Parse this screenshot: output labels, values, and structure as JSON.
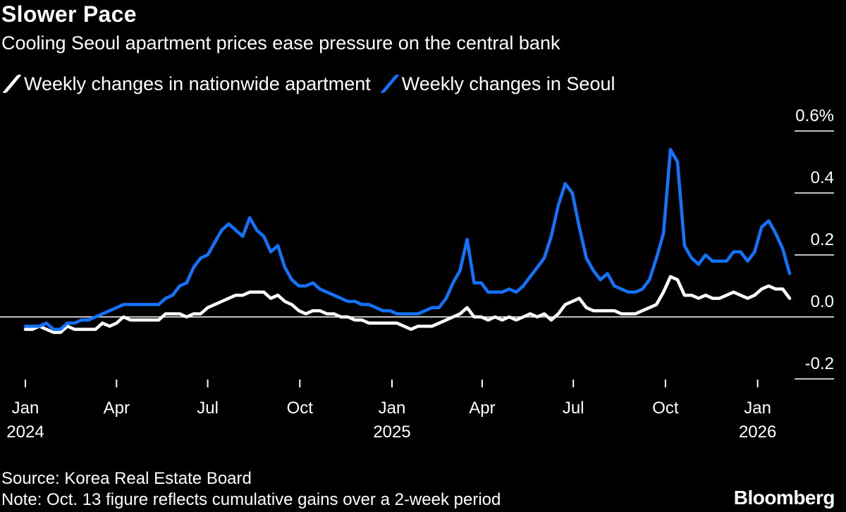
{
  "title": "Slower Pace",
  "subtitle": "Cooling Seoul apartment prices ease pressure on the central bank",
  "source": "Source: Korea Real Estate Board",
  "note": "Note: Oct. 13 figure reflects cumulative gains over a 2-week period",
  "brand": "Bloomberg",
  "chart_data": {
    "type": "line",
    "ylim": [
      -0.2,
      0.6
    ],
    "y_ticks": [
      {
        "value": 0.6,
        "label": "0.6%"
      },
      {
        "value": 0.4,
        "label": "0.4"
      },
      {
        "value": 0.2,
        "label": "0.2"
      },
      {
        "value": 0.0,
        "label": "0.0"
      },
      {
        "value": -0.2,
        "label": "-0.2"
      }
    ],
    "x_ticks": [
      {
        "date": "2024-01-01",
        "label": "Jan",
        "year": "2024"
      },
      {
        "date": "2024-04-01",
        "label": "Apr",
        "year": ""
      },
      {
        "date": "2024-07-01",
        "label": "Jul",
        "year": ""
      },
      {
        "date": "2024-10-01",
        "label": "Oct",
        "year": ""
      },
      {
        "date": "2025-01-01",
        "label": "Jan",
        "year": "2025"
      },
      {
        "date": "2025-04-01",
        "label": "Apr",
        "year": ""
      },
      {
        "date": "2025-07-01",
        "label": "Jul",
        "year": ""
      },
      {
        "date": "2025-10-01",
        "label": "Oct",
        "year": ""
      },
      {
        "date": "2026-01-01",
        "label": "Jan",
        "year": "2026"
      }
    ],
    "x_start": "2024-01-01",
    "x_end": "2026-02-16",
    "series": [
      {
        "name": "Weekly changes in nationwide apartment",
        "color": "#ffffff",
        "points": [
          [
            "2024-01-01",
            -0.04
          ],
          [
            "2024-01-08",
            -0.04
          ],
          [
            "2024-01-15",
            -0.03
          ],
          [
            "2024-01-22",
            -0.04
          ],
          [
            "2024-01-29",
            -0.05
          ],
          [
            "2024-02-05",
            -0.05
          ],
          [
            "2024-02-12",
            -0.03
          ],
          [
            "2024-02-19",
            -0.04
          ],
          [
            "2024-02-26",
            -0.04
          ],
          [
            "2024-03-04",
            -0.04
          ],
          [
            "2024-03-11",
            -0.04
          ],
          [
            "2024-03-18",
            -0.02
          ],
          [
            "2024-03-25",
            -0.03
          ],
          [
            "2024-04-01",
            -0.02
          ],
          [
            "2024-04-08",
            0.0
          ],
          [
            "2024-04-15",
            -0.01
          ],
          [
            "2024-04-22",
            -0.01
          ],
          [
            "2024-04-29",
            -0.01
          ],
          [
            "2024-05-06",
            -0.01
          ],
          [
            "2024-05-13",
            -0.01
          ],
          [
            "2024-05-20",
            0.01
          ],
          [
            "2024-05-27",
            0.01
          ],
          [
            "2024-06-03",
            0.01
          ],
          [
            "2024-06-10",
            0.0
          ],
          [
            "2024-06-17",
            0.01
          ],
          [
            "2024-06-24",
            0.01
          ],
          [
            "2024-07-01",
            0.03
          ],
          [
            "2024-07-08",
            0.04
          ],
          [
            "2024-07-15",
            0.05
          ],
          [
            "2024-07-22",
            0.06
          ],
          [
            "2024-07-29",
            0.07
          ],
          [
            "2024-08-05",
            0.07
          ],
          [
            "2024-08-12",
            0.08
          ],
          [
            "2024-08-19",
            0.08
          ],
          [
            "2024-08-26",
            0.08
          ],
          [
            "2024-09-02",
            0.06
          ],
          [
            "2024-09-09",
            0.07
          ],
          [
            "2024-09-16",
            0.05
          ],
          [
            "2024-09-23",
            0.04
          ],
          [
            "2024-09-30",
            0.02
          ],
          [
            "2024-10-07",
            0.01
          ],
          [
            "2024-10-14",
            0.02
          ],
          [
            "2024-10-21",
            0.02
          ],
          [
            "2024-10-28",
            0.01
          ],
          [
            "2024-11-04",
            0.01
          ],
          [
            "2024-11-11",
            0.0
          ],
          [
            "2024-11-18",
            0.0
          ],
          [
            "2024-11-25",
            -0.01
          ],
          [
            "2024-12-02",
            -0.01
          ],
          [
            "2024-12-09",
            -0.02
          ],
          [
            "2024-12-16",
            -0.02
          ],
          [
            "2024-12-23",
            -0.02
          ],
          [
            "2024-12-30",
            -0.02
          ],
          [
            "2025-01-06",
            -0.02
          ],
          [
            "2025-01-13",
            -0.03
          ],
          [
            "2025-01-20",
            -0.04
          ],
          [
            "2025-01-27",
            -0.03
          ],
          [
            "2025-02-03",
            -0.03
          ],
          [
            "2025-02-10",
            -0.03
          ],
          [
            "2025-02-17",
            -0.02
          ],
          [
            "2025-02-24",
            -0.01
          ],
          [
            "2025-03-03",
            0.0
          ],
          [
            "2025-03-10",
            0.01
          ],
          [
            "2025-03-17",
            0.03
          ],
          [
            "2025-03-24",
            0.0
          ],
          [
            "2025-03-31",
            0.0
          ],
          [
            "2025-04-07",
            -0.01
          ],
          [
            "2025-04-14",
            0.0
          ],
          [
            "2025-04-21",
            -0.01
          ],
          [
            "2025-04-28",
            0.0
          ],
          [
            "2025-05-05",
            -0.01
          ],
          [
            "2025-05-12",
            0.0
          ],
          [
            "2025-05-19",
            0.01
          ],
          [
            "2025-05-26",
            0.0
          ],
          [
            "2025-06-02",
            0.01
          ],
          [
            "2025-06-09",
            -0.01
          ],
          [
            "2025-06-16",
            0.01
          ],
          [
            "2025-06-23",
            0.04
          ],
          [
            "2025-06-30",
            0.05
          ],
          [
            "2025-07-07",
            0.06
          ],
          [
            "2025-07-14",
            0.03
          ],
          [
            "2025-07-21",
            0.02
          ],
          [
            "2025-07-28",
            0.02
          ],
          [
            "2025-08-04",
            0.02
          ],
          [
            "2025-08-11",
            0.02
          ],
          [
            "2025-08-18",
            0.01
          ],
          [
            "2025-08-25",
            0.01
          ],
          [
            "2025-09-01",
            0.01
          ],
          [
            "2025-09-08",
            0.02
          ],
          [
            "2025-09-15",
            0.03
          ],
          [
            "2025-09-22",
            0.04
          ],
          [
            "2025-09-29",
            0.08
          ],
          [
            "2025-10-06",
            0.13
          ],
          [
            "2025-10-13",
            0.12
          ],
          [
            "2025-10-20",
            0.07
          ],
          [
            "2025-10-27",
            0.07
          ],
          [
            "2025-11-03",
            0.06
          ],
          [
            "2025-11-10",
            0.07
          ],
          [
            "2025-11-17",
            0.06
          ],
          [
            "2025-11-24",
            0.06
          ],
          [
            "2025-12-01",
            0.07
          ],
          [
            "2025-12-08",
            0.08
          ],
          [
            "2025-12-15",
            0.07
          ],
          [
            "2025-12-22",
            0.06
          ],
          [
            "2025-12-29",
            0.07
          ],
          [
            "2026-01-05",
            0.09
          ],
          [
            "2026-01-12",
            0.1
          ],
          [
            "2026-01-19",
            0.09
          ],
          [
            "2026-01-26",
            0.09
          ],
          [
            "2026-02-02",
            0.06
          ]
        ]
      },
      {
        "name": "Weekly changes in Seoul",
        "color": "#1273ff",
        "points": [
          [
            "2024-01-01",
            -0.03
          ],
          [
            "2024-01-08",
            -0.03
          ],
          [
            "2024-01-15",
            -0.03
          ],
          [
            "2024-01-22",
            -0.02
          ],
          [
            "2024-01-29",
            -0.04
          ],
          [
            "2024-02-05",
            -0.04
          ],
          [
            "2024-02-12",
            -0.02
          ],
          [
            "2024-02-19",
            -0.02
          ],
          [
            "2024-02-26",
            -0.01
          ],
          [
            "2024-03-04",
            -0.01
          ],
          [
            "2024-03-11",
            0.0
          ],
          [
            "2024-03-18",
            0.01
          ],
          [
            "2024-03-25",
            0.02
          ],
          [
            "2024-04-01",
            0.03
          ],
          [
            "2024-04-08",
            0.04
          ],
          [
            "2024-04-15",
            0.04
          ],
          [
            "2024-04-22",
            0.04
          ],
          [
            "2024-04-29",
            0.04
          ],
          [
            "2024-05-06",
            0.04
          ],
          [
            "2024-05-13",
            0.04
          ],
          [
            "2024-05-20",
            0.06
          ],
          [
            "2024-05-27",
            0.07
          ],
          [
            "2024-06-03",
            0.1
          ],
          [
            "2024-06-10",
            0.11
          ],
          [
            "2024-06-17",
            0.16
          ],
          [
            "2024-06-24",
            0.19
          ],
          [
            "2024-07-01",
            0.2
          ],
          [
            "2024-07-08",
            0.24
          ],
          [
            "2024-07-15",
            0.28
          ],
          [
            "2024-07-22",
            0.3
          ],
          [
            "2024-07-29",
            0.28
          ],
          [
            "2024-08-05",
            0.26
          ],
          [
            "2024-08-12",
            0.32
          ],
          [
            "2024-08-19",
            0.28
          ],
          [
            "2024-08-26",
            0.26
          ],
          [
            "2024-09-02",
            0.21
          ],
          [
            "2024-09-09",
            0.23
          ],
          [
            "2024-09-16",
            0.16
          ],
          [
            "2024-09-23",
            0.12
          ],
          [
            "2024-09-30",
            0.1
          ],
          [
            "2024-10-07",
            0.1
          ],
          [
            "2024-10-14",
            0.11
          ],
          [
            "2024-10-21",
            0.09
          ],
          [
            "2024-10-28",
            0.08
          ],
          [
            "2024-11-04",
            0.07
          ],
          [
            "2024-11-11",
            0.06
          ],
          [
            "2024-11-18",
            0.05
          ],
          [
            "2024-11-25",
            0.05
          ],
          [
            "2024-12-02",
            0.04
          ],
          [
            "2024-12-09",
            0.04
          ],
          [
            "2024-12-16",
            0.03
          ],
          [
            "2024-12-23",
            0.02
          ],
          [
            "2024-12-30",
            0.02
          ],
          [
            "2025-01-06",
            0.01
          ],
          [
            "2025-01-13",
            0.01
          ],
          [
            "2025-01-20",
            0.01
          ],
          [
            "2025-01-27",
            0.01
          ],
          [
            "2025-02-03",
            0.02
          ],
          [
            "2025-02-10",
            0.03
          ],
          [
            "2025-02-17",
            0.03
          ],
          [
            "2025-02-24",
            0.06
          ],
          [
            "2025-03-03",
            0.11
          ],
          [
            "2025-03-10",
            0.15
          ],
          [
            "2025-03-17",
            0.25
          ],
          [
            "2025-03-24",
            0.11
          ],
          [
            "2025-03-31",
            0.11
          ],
          [
            "2025-04-07",
            0.08
          ],
          [
            "2025-04-14",
            0.08
          ],
          [
            "2025-04-21",
            0.08
          ],
          [
            "2025-04-28",
            0.09
          ],
          [
            "2025-05-05",
            0.08
          ],
          [
            "2025-05-12",
            0.1
          ],
          [
            "2025-05-19",
            0.13
          ],
          [
            "2025-05-26",
            0.16
          ],
          [
            "2025-06-02",
            0.19
          ],
          [
            "2025-06-09",
            0.26
          ],
          [
            "2025-06-16",
            0.36
          ],
          [
            "2025-06-23",
            0.43
          ],
          [
            "2025-06-30",
            0.4
          ],
          [
            "2025-07-07",
            0.29
          ],
          [
            "2025-07-14",
            0.19
          ],
          [
            "2025-07-21",
            0.15
          ],
          [
            "2025-07-28",
            0.12
          ],
          [
            "2025-08-04",
            0.14
          ],
          [
            "2025-08-11",
            0.1
          ],
          [
            "2025-08-18",
            0.09
          ],
          [
            "2025-08-25",
            0.08
          ],
          [
            "2025-09-01",
            0.08
          ],
          [
            "2025-09-08",
            0.09
          ],
          [
            "2025-09-15",
            0.12
          ],
          [
            "2025-09-22",
            0.19
          ],
          [
            "2025-09-29",
            0.27
          ],
          [
            "2025-10-06",
            0.54
          ],
          [
            "2025-10-13",
            0.5
          ],
          [
            "2025-10-20",
            0.23
          ],
          [
            "2025-10-27",
            0.19
          ],
          [
            "2025-11-03",
            0.17
          ],
          [
            "2025-11-10",
            0.2
          ],
          [
            "2025-11-17",
            0.18
          ],
          [
            "2025-11-24",
            0.18
          ],
          [
            "2025-12-01",
            0.18
          ],
          [
            "2025-12-08",
            0.21
          ],
          [
            "2025-12-15",
            0.21
          ],
          [
            "2025-12-22",
            0.18
          ],
          [
            "2025-12-29",
            0.21
          ],
          [
            "2026-01-05",
            0.29
          ],
          [
            "2026-01-12",
            0.31
          ],
          [
            "2026-01-19",
            0.27
          ],
          [
            "2026-01-26",
            0.22
          ],
          [
            "2026-02-02",
            0.14
          ]
        ]
      }
    ]
  }
}
